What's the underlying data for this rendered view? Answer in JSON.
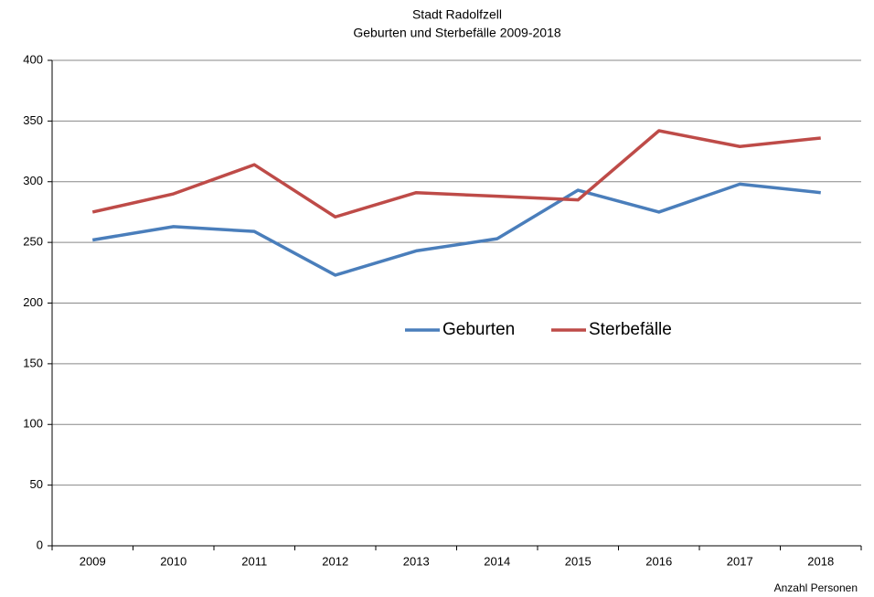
{
  "chart_data": {
    "type": "line",
    "title": "Stadt Radolfzell",
    "subtitle": "Geburten und Sterbefälle 2009-2018",
    "note": "Anzahl Personen",
    "categories": [
      "2009",
      "2010",
      "2011",
      "2012",
      "2013",
      "2014",
      "2015",
      "2016",
      "2017",
      "2018"
    ],
    "series": [
      {
        "name": "Geburten",
        "color": "#4a7ebb",
        "values": [
          252,
          263,
          259,
          223,
          243,
          253,
          293,
          275,
          298,
          291
        ]
      },
      {
        "name": "Sterbefälle",
        "color": "#be4b48",
        "values": [
          275,
          290,
          314,
          271,
          291,
          288,
          285,
          342,
          329,
          336
        ]
      }
    ],
    "ylim": [
      0,
      400
    ],
    "yticks": [
      0,
      50,
      100,
      150,
      200,
      250,
      300,
      350,
      400
    ],
    "grid": true
  }
}
